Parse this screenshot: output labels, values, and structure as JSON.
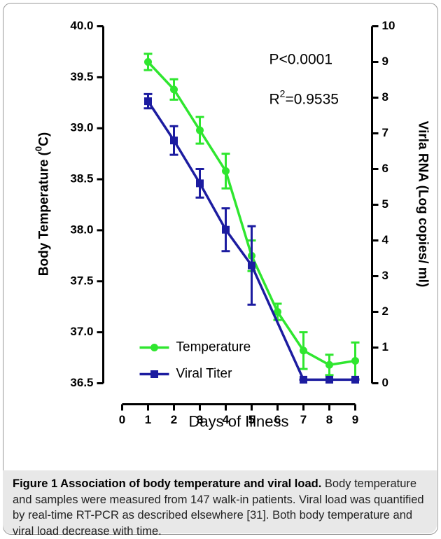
{
  "chart_data": {
    "type": "line",
    "x_label": "Days of Illness",
    "y_label": [
      "Body Temperature (",
      "0",
      "C)"
    ],
    "y2_label": "Virla RNA (Log copies/ ml)",
    "annotations": [
      [
        "P<0.0001"
      ],
      [
        "R",
        "2",
        "=0.9535"
      ]
    ],
    "xlim": [
      0,
      9
    ],
    "xticks": [
      0,
      1,
      2,
      3,
      4,
      5,
      6,
      7,
      8,
      9
    ],
    "ylim": [
      36.5,
      40.0
    ],
    "yticks": [
      36.5,
      {
        "value": 37.0,
        "label": "37.0"
      },
      37.5,
      {
        "value": 38.0,
        "label": "38.0"
      },
      38.5,
      {
        "value": 39.0,
        "label": "39.0"
      },
      39.5,
      {
        "value": 40.0,
        "label": "40.0"
      }
    ],
    "y2lim": [
      0,
      10
    ],
    "y2ticks": [
      0,
      1,
      2,
      3,
      4,
      5,
      6,
      7,
      8,
      9,
      10
    ],
    "series": [
      {
        "name": "Temperature",
        "color": "#2fe62f",
        "marker": "circle",
        "axis": "y",
        "x": [
          1,
          2,
          3,
          4,
          5,
          6,
          7,
          8,
          9
        ],
        "values": [
          39.65,
          39.38,
          38.98,
          38.58,
          37.75,
          37.2,
          36.82,
          36.68,
          36.72
        ],
        "errors": [
          0.08,
          0.1,
          0.13,
          0.17,
          0.15,
          0.08,
          0.18,
          0.1,
          0.18
        ]
      },
      {
        "name": "Viral Titer",
        "color": "#1c1ca0",
        "marker": "square",
        "axis": "y2",
        "x": [
          1,
          2,
          3,
          4,
          5,
          7,
          8,
          9
        ],
        "values": [
          7.9,
          6.8,
          5.6,
          4.3,
          3.3,
          0.1,
          0.1,
          0.1
        ],
        "errors": [
          0.2,
          0.4,
          0.4,
          0.6,
          1.1,
          0,
          0,
          0
        ]
      }
    ]
  },
  "caption": {
    "title": "Figure 1 Association of body temperature and viral load.",
    "text": "Body temperature and samples were measured from 147 walk-in patients. Viral load was quantified by real-time RT-PCR as described elsewhere [31]. Both body temperature and viral load decrease with time."
  }
}
